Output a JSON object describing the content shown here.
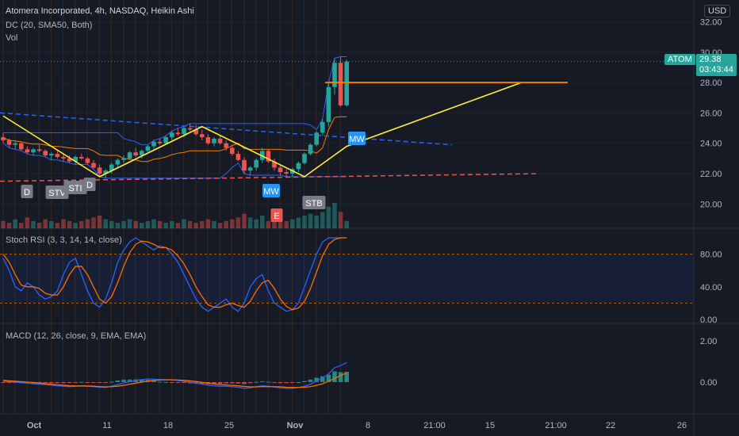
{
  "header": {
    "title": "Atomera Incorporated, 4h, NASDAQ, Heikin Ashi",
    "indicator_dc": "DC (20, SMA50, Both)",
    "indicator_vol": "Vol",
    "currency": "USD"
  },
  "panes": {
    "stoch_title": "Stoch RSI (3, 3, 14, 14, close)",
    "macd_title": "MACD (12, 26, close, 9, EMA, EMA)"
  },
  "price_tag": {
    "symbol": "ATOM",
    "price": "29.38",
    "countdown": "03:43:44"
  },
  "colors": {
    "up": "#26a69a",
    "down": "#ef5350",
    "bg": "#161a25",
    "channel": "#2962ff",
    "orange": "#f57c00",
    "yellow": "#ffeb3b"
  },
  "chart_data": {
    "type": "candlestick",
    "x_ticks": [
      "Oct",
      "11",
      "18",
      "25",
      "Nov",
      "8",
      "21:00",
      "15",
      "21:00",
      "22",
      "26"
    ],
    "price_axis": {
      "ticks": [
        "32.00",
        "30.00",
        "28.00",
        "26.00",
        "24.00",
        "22.00",
        "20.00"
      ],
      "range": [
        18.4,
        32.6
      ]
    },
    "stoch_axis": {
      "ticks": [
        "80.00",
        "40.00",
        "0.00"
      ],
      "band": [
        20,
        80
      ]
    },
    "macd_axis": {
      "ticks": [
        "2.00",
        "0.00"
      ]
    },
    "last_price": 29.38,
    "pattern_labels": [
      "D",
      "STV",
      "STI",
      "D",
      "MW",
      "MW",
      "STB",
      "E"
    ],
    "candles": [
      [
        24.4,
        24.7,
        24.0,
        24.2
      ],
      [
        24.2,
        24.3,
        23.7,
        23.9
      ],
      [
        23.9,
        24.2,
        23.6,
        24.0
      ],
      [
        24.0,
        24.1,
        23.5,
        23.6
      ],
      [
        23.6,
        23.8,
        23.3,
        23.4
      ],
      [
        23.4,
        23.7,
        23.2,
        23.6
      ],
      [
        23.6,
        23.9,
        23.4,
        23.5
      ],
      [
        23.5,
        23.6,
        23.1,
        23.2
      ],
      [
        23.2,
        23.4,
        22.9,
        23.3
      ],
      [
        23.3,
        23.5,
        23.0,
        23.1
      ],
      [
        23.1,
        23.3,
        22.8,
        23.0
      ],
      [
        23.0,
        23.2,
        22.7,
        22.8
      ],
      [
        22.8,
        23.2,
        22.6,
        23.1
      ],
      [
        23.1,
        23.3,
        22.9,
        23.0
      ],
      [
        23.0,
        23.1,
        22.6,
        22.7
      ],
      [
        22.7,
        22.9,
        22.3,
        22.4
      ],
      [
        22.4,
        22.6,
        21.8,
        22.0
      ],
      [
        22.0,
        22.3,
        21.7,
        22.2
      ],
      [
        22.2,
        22.7,
        22.0,
        22.6
      ],
      [
        22.6,
        23.0,
        22.4,
        22.9
      ],
      [
        22.9,
        23.2,
        22.7,
        23.0
      ],
      [
        23.0,
        23.5,
        22.9,
        23.4
      ],
      [
        23.4,
        23.7,
        23.1,
        23.2
      ],
      [
        23.2,
        23.6,
        23.0,
        23.5
      ],
      [
        23.5,
        23.9,
        23.3,
        23.8
      ],
      [
        23.8,
        24.2,
        23.6,
        24.1
      ],
      [
        24.1,
        24.3,
        23.9,
        24.0
      ],
      [
        24.0,
        24.5,
        23.9,
        24.4
      ],
      [
        24.4,
        24.8,
        24.2,
        24.7
      ],
      [
        24.7,
        25.0,
        24.5,
        24.6
      ],
      [
        24.6,
        25.1,
        24.4,
        25.0
      ],
      [
        25.0,
        25.3,
        24.8,
        24.9
      ],
      [
        24.9,
        25.2,
        24.5,
        24.6
      ],
      [
        24.6,
        24.9,
        24.2,
        24.4
      ],
      [
        24.4,
        24.6,
        23.9,
        24.0
      ],
      [
        24.0,
        24.4,
        23.8,
        24.3
      ],
      [
        24.3,
        24.5,
        23.9,
        24.0
      ],
      [
        24.0,
        24.2,
        23.5,
        23.7
      ],
      [
        23.7,
        23.9,
        23.2,
        23.3
      ],
      [
        23.3,
        23.5,
        22.8,
        22.9
      ],
      [
        22.9,
        23.1,
        22.0,
        22.2
      ],
      [
        22.2,
        22.5,
        21.9,
        22.4
      ],
      [
        22.4,
        23.0,
        22.2,
        22.9
      ],
      [
        22.9,
        23.7,
        22.7,
        23.5
      ],
      [
        23.5,
        23.6,
        22.7,
        22.8
      ],
      [
        22.8,
        23.0,
        22.2,
        22.4
      ],
      [
        22.4,
        22.6,
        21.9,
        22.1
      ],
      [
        22.1,
        22.3,
        21.8,
        22.0
      ],
      [
        22.0,
        22.4,
        21.8,
        22.3
      ],
      [
        22.3,
        22.8,
        22.1,
        22.7
      ],
      [
        22.7,
        23.4,
        22.6,
        23.3
      ],
      [
        23.3,
        24.0,
        23.2,
        23.9
      ],
      [
        23.9,
        24.8,
        23.8,
        24.7
      ],
      [
        24.7,
        25.6,
        24.5,
        25.4
      ],
      [
        25.4,
        28.0,
        25.1,
        27.7
      ],
      [
        27.7,
        29.6,
        27.2,
        29.3
      ],
      [
        29.3,
        29.7,
        26.4,
        26.5
      ],
      [
        26.5,
        29.5,
        26.4,
        29.38
      ]
    ],
    "volume": [
      4,
      3,
      5,
      3,
      6,
      4,
      3,
      5,
      4,
      3,
      5,
      4,
      3,
      4,
      5,
      6,
      7,
      5,
      4,
      3,
      4,
      5,
      4,
      3,
      4,
      5,
      4,
      3,
      4,
      3,
      5,
      4,
      3,
      4,
      5,
      4,
      3,
      4,
      5,
      6,
      8,
      6,
      5,
      7,
      4,
      5,
      6,
      4,
      5,
      6,
      7,
      8,
      7,
      9,
      12,
      14,
      9,
      4
    ],
    "stoch_k": [
      75,
      60,
      40,
      35,
      45,
      40,
      30,
      25,
      28,
      35,
      55,
      70,
      75,
      55,
      35,
      20,
      15,
      25,
      45,
      70,
      85,
      95,
      100,
      95,
      90,
      85,
      90,
      88,
      80,
      70,
      55,
      40,
      25,
      15,
      10,
      15,
      20,
      25,
      15,
      10,
      20,
      40,
      50,
      55,
      35,
      20,
      15,
      10,
      12,
      20,
      40,
      60,
      80,
      95,
      100,
      100,
      100,
      100
    ],
    "stoch_d": [
      80,
      70,
      55,
      42,
      40,
      40,
      38,
      32,
      30,
      30,
      40,
      55,
      65,
      65,
      55,
      40,
      25,
      20,
      28,
      45,
      65,
      82,
      92,
      96,
      95,
      92,
      88,
      88,
      85,
      78,
      68,
      55,
      40,
      28,
      18,
      15,
      15,
      18,
      20,
      17,
      15,
      22,
      35,
      45,
      48,
      38,
      25,
      16,
      12,
      14,
      22,
      38,
      58,
      78,
      92,
      98,
      100,
      100
    ],
    "macd_line": [
      0.05,
      0.02,
      0.0,
      -0.03,
      -0.05,
      -0.08,
      -0.1,
      -0.12,
      -0.15,
      -0.18,
      -0.2,
      -0.22,
      -0.2,
      -0.18,
      -0.2,
      -0.22,
      -0.25,
      -0.26,
      -0.2,
      -0.12,
      -0.05,
      0.02,
      0.08,
      0.12,
      0.15,
      0.14,
      0.12,
      0.12,
      0.1,
      0.08,
      0.04,
      0.0,
      -0.05,
      -0.1,
      -0.15,
      -0.18,
      -0.2,
      -0.2,
      -0.22,
      -0.25,
      -0.3,
      -0.28,
      -0.22,
      -0.18,
      -0.2,
      -0.24,
      -0.28,
      -0.3,
      -0.3,
      -0.26,
      -0.2,
      -0.1,
      0.05,
      0.2,
      0.4,
      0.7,
      0.8,
      0.95
    ],
    "macd_signal": [
      0.08,
      0.06,
      0.04,
      0.02,
      0.0,
      -0.02,
      -0.05,
      -0.08,
      -0.1,
      -0.13,
      -0.15,
      -0.18,
      -0.19,
      -0.19,
      -0.19,
      -0.2,
      -0.22,
      -0.23,
      -0.22,
      -0.2,
      -0.16,
      -0.1,
      -0.05,
      0.0,
      0.05,
      0.08,
      0.1,
      0.11,
      0.11,
      0.1,
      0.08,
      0.06,
      0.03,
      -0.01,
      -0.05,
      -0.09,
      -0.12,
      -0.14,
      -0.16,
      -0.18,
      -0.21,
      -0.23,
      -0.23,
      -0.22,
      -0.22,
      -0.22,
      -0.23,
      -0.25,
      -0.26,
      -0.26,
      -0.25,
      -0.22,
      -0.16,
      -0.08,
      0.04,
      0.18,
      0.32,
      0.45
    ]
  }
}
